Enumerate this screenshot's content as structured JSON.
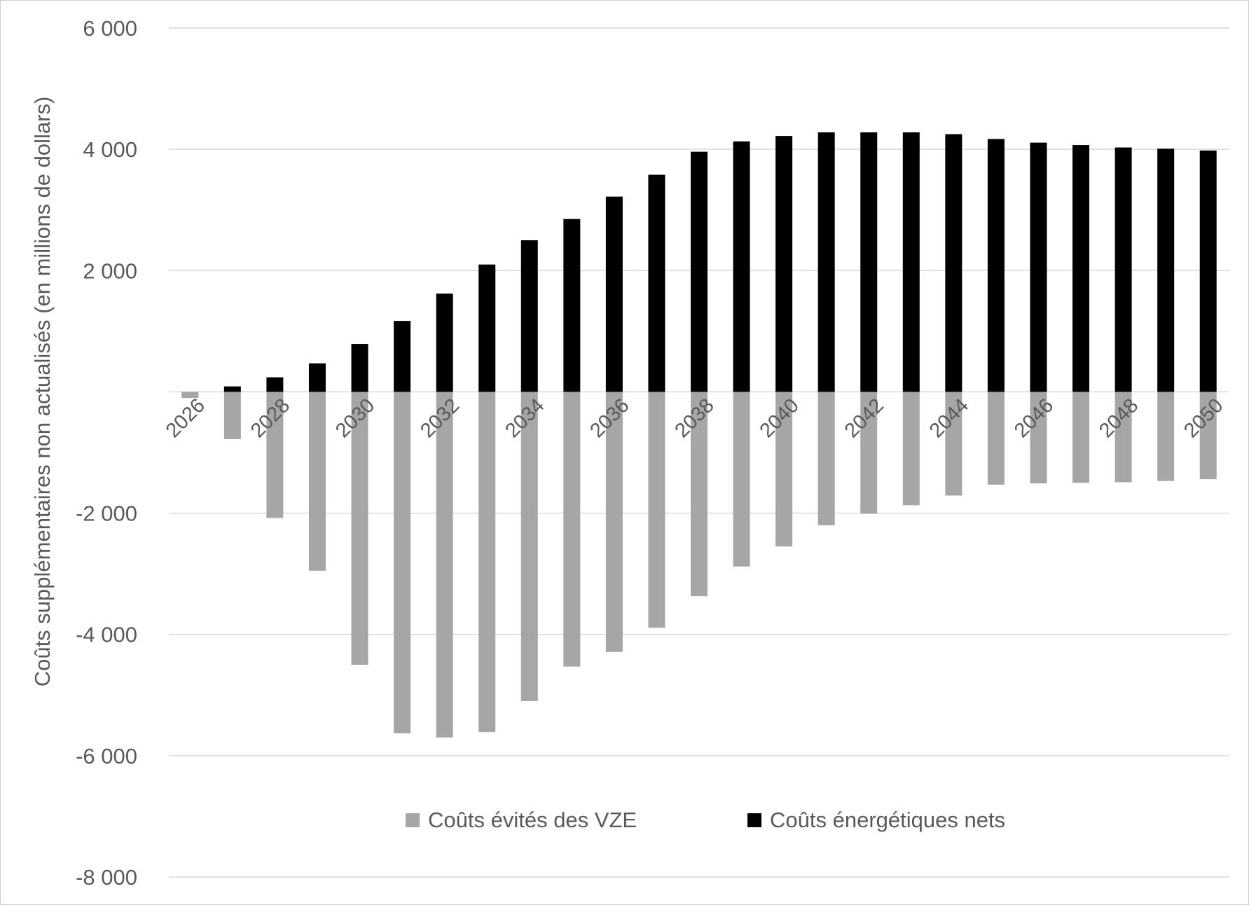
{
  "chart_data": {
    "type": "bar",
    "title": "",
    "xlabel": "",
    "ylabel": "Coûts supplémentaires non actualisés (en millions de dollars)",
    "ylim": [
      -8000,
      6000
    ],
    "y_ticks": [
      6000,
      4000,
      2000,
      -2000,
      -4000,
      -6000,
      -8000
    ],
    "y_tick_labels": [
      "6 000",
      "4 000",
      "2 000",
      "-2 000",
      "-4 000",
      "-6 000",
      "-8 000"
    ],
    "x_tick_labels": [
      "2026",
      "2028",
      "2030",
      "2032",
      "2034",
      "2036",
      "2038",
      "2040",
      "2042",
      "2044",
      "2046",
      "2048",
      "2050"
    ],
    "categories": [
      "2026",
      "2027",
      "2028",
      "2029",
      "2030",
      "2031",
      "2032",
      "2033",
      "2034",
      "2035",
      "2036",
      "2037",
      "2038",
      "2039",
      "2040",
      "2041",
      "2042",
      "2043",
      "2044",
      "2045",
      "2046",
      "2047",
      "2048",
      "2049",
      "2050"
    ],
    "stacked": true,
    "grid": true,
    "legend_position": "bottom-center",
    "series": [
      {
        "name": "Coûts évités des VZE",
        "color": "#a6a6a6",
        "values": [
          -100,
          -780,
          -2080,
          -2950,
          -4500,
          -5630,
          -5700,
          -5610,
          -5100,
          -4530,
          -4290,
          -3890,
          -3370,
          -2880,
          -2550,
          -2200,
          -2010,
          -1870,
          -1710,
          -1530,
          -1510,
          -1500,
          -1490,
          -1470,
          -1440
        ]
      },
      {
        "name": "Coûts énergétiques nets",
        "color": "#000000",
        "values": [
          0,
          90,
          240,
          470,
          790,
          1170,
          1620,
          2100,
          2500,
          2850,
          3220,
          3580,
          3960,
          4130,
          4220,
          4280,
          4280,
          4280,
          4250,
          4170,
          4110,
          4070,
          4030,
          4010,
          3980
        ]
      }
    ]
  }
}
